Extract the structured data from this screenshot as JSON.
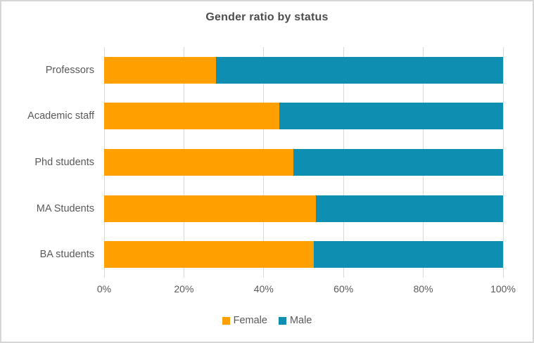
{
  "title": "Gender ratio by status",
  "chart_data": {
    "type": "bar",
    "orientation": "horizontal",
    "stacked": true,
    "stacked_total": 100,
    "title": "Gender ratio by status",
    "categories": [
      "Professors",
      "Academic staff",
      "Phd students",
      "MA Students",
      "BA students"
    ],
    "series": [
      {
        "name": "Female",
        "color": "#FFA000",
        "values": [
          28,
          44,
          47.5,
          53,
          52.5
        ]
      },
      {
        "name": "Male",
        "color": "#0E8FB2",
        "values": [
          72,
          56,
          52.5,
          47,
          47.5
        ]
      }
    ],
    "x_axis": {
      "min": 0,
      "max": 100,
      "tick_values": [
        0,
        20,
        40,
        60,
        80,
        100
      ],
      "tick_labels": [
        "0%",
        "20%",
        "40%",
        "60%",
        "80%",
        "100%"
      ]
    },
    "ylabel": "",
    "xlabel": "",
    "grid": true,
    "legend_position": "bottom"
  },
  "colors": {
    "female": "#FFA000",
    "male": "#0E8FB2",
    "gridline": "#D9D9D9",
    "axis_text": "#595959",
    "title_text": "#4D4D4D",
    "frame_border": "#D6D6D6",
    "background": "#FFFFFF"
  }
}
